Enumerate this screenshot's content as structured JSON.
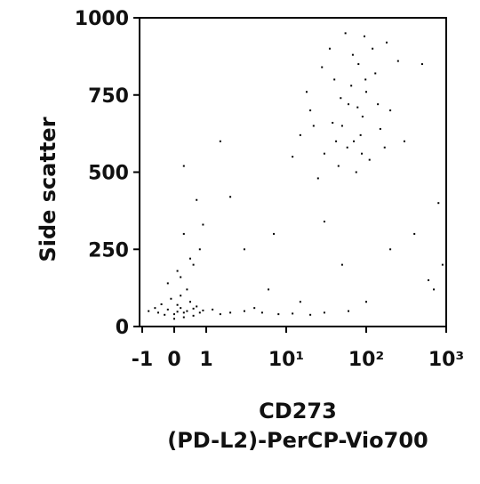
{
  "chart_data": {
    "type": "scatter",
    "ylabel": "Side scatter",
    "xlabel": [
      "CD273",
      "(PD-L2)-PerCP-Vio700"
    ],
    "xscale": "biexponential",
    "color": "#000000",
    "xlim": [
      -1,
      1000
    ],
    "ylim": [
      0,
      1000
    ],
    "xticks": [
      -1,
      0,
      1,
      {
        "value": 10,
        "label": "10¹"
      },
      {
        "value": 100,
        "label": "10²"
      },
      {
        "value": 1000,
        "label": "10³"
      }
    ],
    "yticks": [
      0,
      250,
      500,
      750,
      1000
    ],
    "x": [
      -0.5,
      -0.2,
      0,
      0.2,
      0.4,
      0.6,
      -0.8,
      0.1,
      0.3,
      -0.3,
      0.8,
      1.2,
      0.5,
      -0.1,
      0.2,
      0.7,
      -0.6,
      0,
      0.3,
      1.5,
      0.9,
      -0.4,
      0.1,
      0.6,
      2,
      0.4,
      0.2,
      0.6,
      -0.2,
      0.8,
      0.3,
      0.5,
      0.1,
      0.7,
      0.3,
      0.9,
      3,
      5,
      8,
      12,
      20,
      4,
      30,
      60,
      6,
      15,
      15,
      20,
      30,
      40,
      50,
      60,
      70,
      80,
      90,
      100,
      110,
      120,
      150,
      200,
      25,
      35,
      45,
      55,
      65,
      75,
      85,
      95,
      130,
      170,
      250,
      12,
      18,
      28,
      38,
      48,
      58,
      68,
      78,
      88,
      98,
      140,
      180,
      300,
      22,
      42,
      400,
      600,
      800,
      200,
      50,
      3,
      2,
      7,
      30,
      500,
      700,
      1.5,
      100,
      900
    ],
    "y": [
      45,
      55,
      40,
      60,
      50,
      35,
      50,
      70,
      30,
      38,
      45,
      55,
      80,
      90,
      100,
      65,
      60,
      25,
      45,
      40,
      52,
      72,
      48,
      58,
      45,
      120,
      160,
      200,
      140,
      250,
      300,
      220,
      180,
      410,
      520,
      330,
      50,
      45,
      40,
      42,
      38,
      60,
      45,
      50,
      120,
      80,
      620,
      700,
      560,
      800,
      650,
      720,
      600,
      850,
      680,
      760,
      540,
      900,
      640,
      700,
      480,
      900,
      520,
      950,
      780,
      500,
      620,
      940,
      820,
      580,
      860,
      550,
      760,
      840,
      660,
      740,
      580,
      880,
      710,
      560,
      800,
      720,
      920,
      600,
      650,
      600,
      300,
      150,
      400,
      250,
      200,
      250,
      420,
      300,
      340,
      850,
      120,
      600,
      80,
      200
    ]
  }
}
